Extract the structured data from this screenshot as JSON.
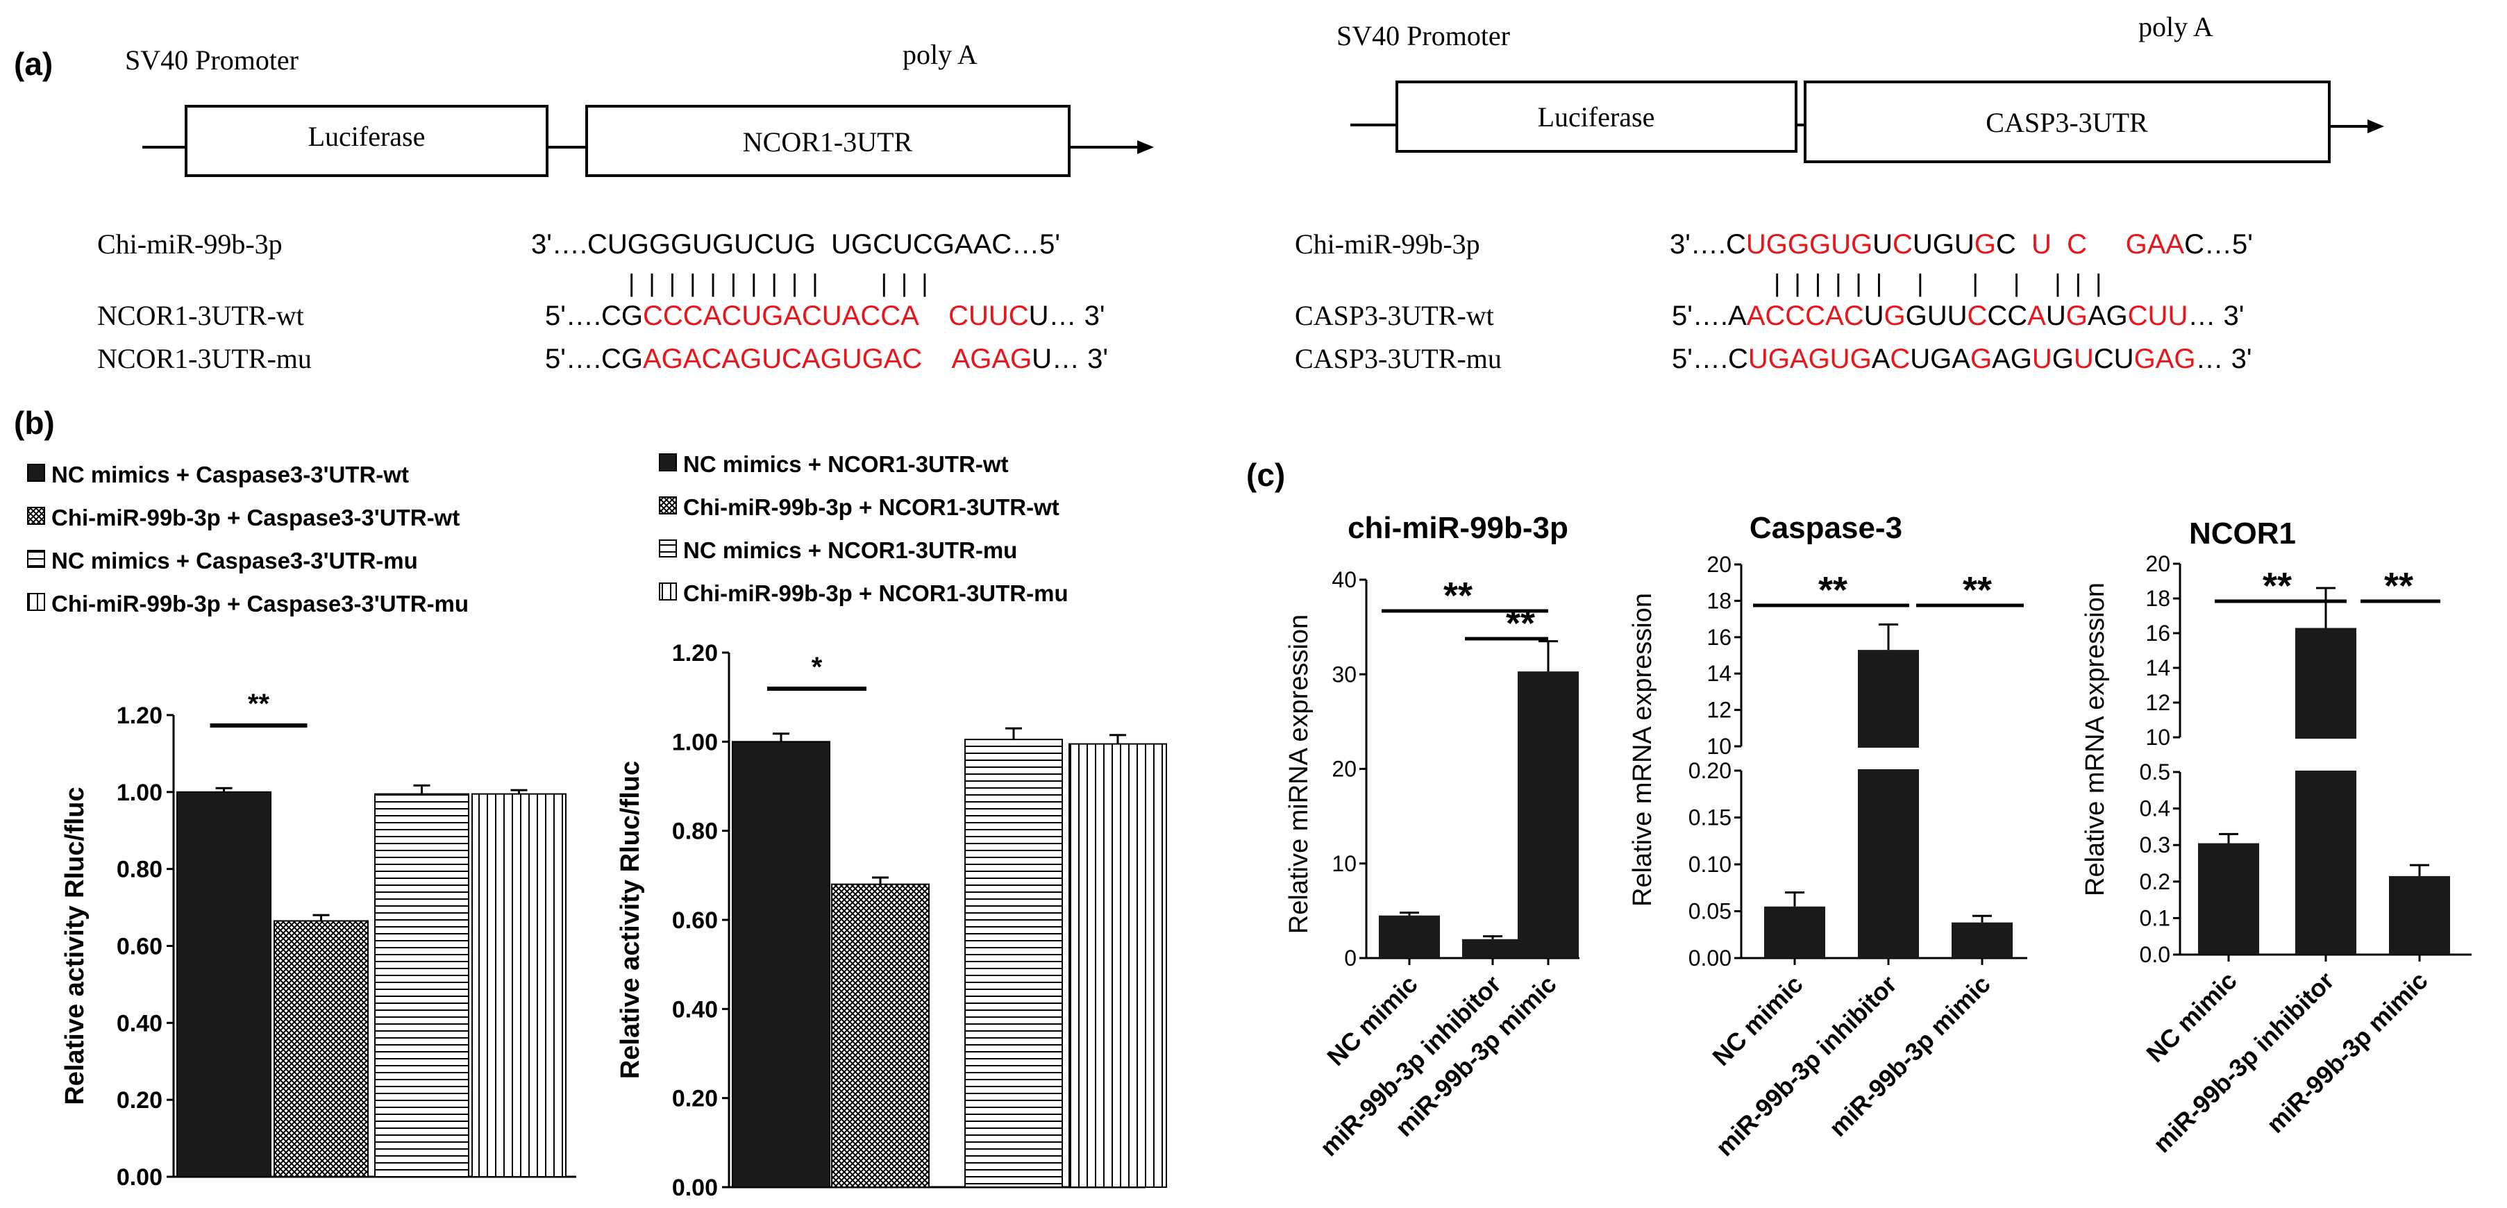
{
  "panel_labels": {
    "a": "(a)",
    "b": "(b)",
    "c": "(c)"
  },
  "colors": {
    "red": "#e8161b",
    "black": "#000000",
    "bar": "#1a1a1a"
  },
  "panel_a": {
    "left": {
      "promoter": "SV40 Promoter",
      "polya": "poly A",
      "box1": "Luciferase",
      "box2": "NCOR1-3UTR",
      "mirna_label": "Chi-miR-99b-3p",
      "wt_label": "NCOR1-3UTR-wt",
      "mu_label": "NCOR1-3UTR-mu",
      "mirna_seq": [
        {
          "t": "3'….CUGGGUGUCUG  UGCUCGAAC…5'",
          "red": false
        }
      ],
      "pairing": "|  |  |  |  |  |  |  |  |  |         |  |  |",
      "wt_seq": [
        {
          "t": "5'….CG",
          "red": false
        },
        {
          "t": "CCCACUGACUACCA",
          "red": true
        },
        {
          "t": "    ",
          "red": false
        },
        {
          "t": "CUUC",
          "red": true
        },
        {
          "t": "U… 3'",
          "red": false
        }
      ],
      "mu_seq": [
        {
          "t": "5'….CG",
          "red": false
        },
        {
          "t": "AGACAGUCAGUGAC",
          "red": true
        },
        {
          "t": "    ",
          "red": false
        },
        {
          "t": "AGAG",
          "red": true
        },
        {
          "t": "U… 3'",
          "red": false
        }
      ]
    },
    "right": {
      "promoter": "SV40 Promoter",
      "polya": "poly A",
      "box1": "Luciferase",
      "box2": "CASP3-3UTR",
      "mirna_label": "Chi-miR-99b-3p",
      "wt_label": "CASP3-3UTR-wt",
      "mu_label": "CASP3-3UTR-mu",
      "mirna_seq": [
        {
          "t": "3'….C",
          "red": false
        },
        {
          "t": "UGGGUG",
          "red": true
        },
        {
          "t": "U",
          "red": false
        },
        {
          "t": "C",
          "red": true
        },
        {
          "t": "UGU",
          "red": false
        },
        {
          "t": "G",
          "red": true
        },
        {
          "t": "C  ",
          "red": false
        },
        {
          "t": "U",
          "red": true
        },
        {
          "t": "  ",
          "red": false
        },
        {
          "t": "C",
          "red": true
        },
        {
          "t": "     ",
          "red": false
        },
        {
          "t": "GAA",
          "red": true
        },
        {
          "t": "C…5'",
          "red": false
        }
      ],
      "pairing": "|  |  |  |  |  |     |       |     |     |  |  |",
      "wt_seq": [
        {
          "t": "5'….A",
          "red": false
        },
        {
          "t": "ACCCAC",
          "red": true
        },
        {
          "t": "U",
          "red": false
        },
        {
          "t": "G",
          "red": true
        },
        {
          "t": "GUU",
          "red": false
        },
        {
          "t": "C",
          "red": true
        },
        {
          "t": "CC",
          "red": false
        },
        {
          "t": "A",
          "red": true
        },
        {
          "t": "U",
          "red": false
        },
        {
          "t": "G",
          "red": true
        },
        {
          "t": "AG",
          "red": false
        },
        {
          "t": "CUU",
          "red": true
        },
        {
          "t": "… 3'",
          "red": false
        }
      ],
      "mu_seq": [
        {
          "t": "5'….C",
          "red": false
        },
        {
          "t": "UGAGUG",
          "red": true
        },
        {
          "t": "A",
          "red": false
        },
        {
          "t": "C",
          "red": true
        },
        {
          "t": "UGA",
          "red": false
        },
        {
          "t": "G",
          "red": true
        },
        {
          "t": "AG",
          "red": false
        },
        {
          "t": "U",
          "red": true
        },
        {
          "t": "G",
          "red": false
        },
        {
          "t": "U",
          "red": true
        },
        {
          "t": "CU",
          "red": false
        },
        {
          "t": "GAG",
          "red": true
        },
        {
          "t": "… 3'",
          "red": false
        }
      ]
    }
  },
  "chart_data": [
    {
      "id": "b-caspase3",
      "type": "bar",
      "ylabel": "Relative activity Rluc/fluc",
      "ylim": [
        0,
        1.2
      ],
      "yticks": [
        "0.00",
        "0.20",
        "0.40",
        "0.60",
        "0.80",
        "1.00",
        "1.20"
      ],
      "legend": [
        {
          "label": "NC mimics + Caspase3-3'UTR-wt",
          "pattern": "solid"
        },
        {
          "label": "Chi-miR-99b-3p + Caspase3-3'UTR-wt",
          "pattern": "check"
        },
        {
          "label": "NC mimics + Caspase3-3'UTR-mu",
          "pattern": "hlines"
        },
        {
          "label": " Chi-miR-99b-3p + Caspase3-3'UTR-mu",
          "pattern": "vlines"
        }
      ],
      "series": [
        {
          "name": "NC mimics + Caspase3-3'UTR-wt",
          "value": 1.0,
          "error": 0.01
        },
        {
          "name": "Chi-miR-99b-3p + Caspase3-3'UTR-wt",
          "value": 0.665,
          "error": 0.015
        },
        {
          "name": "NC mimics + Caspase3-3'UTR-mu",
          "value": 0.995,
          "error": 0.022
        },
        {
          "name": " Chi-miR-99b-3p + Caspase3-3'UTR-mu",
          "value": 0.995,
          "error": 0.01
        }
      ],
      "significance": [
        {
          "label": "**",
          "from": 0,
          "to": 1
        }
      ]
    },
    {
      "id": "b-ncor1",
      "type": "bar",
      "ylabel": "Relative activity Rluc/fluc",
      "ylim": [
        0,
        1.2
      ],
      "yticks": [
        "0.00",
        "0.20",
        "0.40",
        "0.60",
        "0.80",
        "1.00",
        "1.20"
      ],
      "legend": [
        {
          "label": "NC mimics + NCOR1-3UTR-wt",
          "pattern": "solid"
        },
        {
          "label": "Chi-miR-99b-3p + NCOR1-3UTR-wt",
          "pattern": "check"
        },
        {
          "label": "NC mimics + NCOR1-3UTR-mu",
          "pattern": "hlines"
        },
        {
          "label": "Chi-miR-99b-3p + NCOR1-3UTR-mu",
          "pattern": "vlines"
        }
      ],
      "series": [
        {
          "name": "NC mimics + NCOR1-3UTR-wt",
          "value": 1.0,
          "error": 0.018
        },
        {
          "name": "Chi-miR-99b-3p + NCOR1-3UTR-wt",
          "value": 0.68,
          "error": 0.015
        },
        {
          "name": "NC mimics + NCOR1-3UTR-mu",
          "value": 1.005,
          "error": 0.025
        },
        {
          "name": "Chi-miR-99b-3p + NCOR1-3UTR-mu",
          "value": 0.995,
          "error": 0.02
        }
      ],
      "significance": [
        {
          "label": "*",
          "from": 0,
          "to": 1
        }
      ]
    },
    {
      "id": "c-mir99b",
      "type": "bar",
      "title": "chi-miR-99b-3p",
      "ylabel": "Relative miRNA expression",
      "categories": [
        "NC mimic",
        "miR-99b-3p inhibitor",
        "miR-99b-3p mimic"
      ],
      "values": [
        4.5,
        2.0,
        30.3
      ],
      "errors": [
        0.3,
        0.3,
        3.2
      ],
      "ylim": [
        0,
        40
      ],
      "yticks": [
        "0",
        "10",
        "20",
        "30",
        "40"
      ],
      "significance": [
        {
          "label": "**",
          "from": 0,
          "to": 2
        },
        {
          "label": "**",
          "from": 1,
          "to": 2
        }
      ]
    },
    {
      "id": "c-caspase3",
      "type": "bar",
      "title": "Caspase-3",
      "ylabel": "Relative mRNA expression",
      "categories": [
        "NC mimic",
        "miR-99b-3p inhibitor",
        "miR-99b-3p mimic"
      ],
      "values": [
        0.055,
        15.3,
        0.038
      ],
      "errors": [
        0.015,
        1.4,
        0.007
      ],
      "axis_break": {
        "lower": [
          0,
          0.2
        ],
        "upper": [
          10,
          20
        ]
      },
      "yticks_lower": [
        "0.00",
        "0.05",
        "0.10",
        "0.15",
        "0.20"
      ],
      "yticks_upper": [
        "10",
        "12",
        "14",
        "16",
        "18",
        "20"
      ],
      "significance": [
        {
          "label": "**",
          "from": 0,
          "to": 1
        },
        {
          "label": "**",
          "from": 1,
          "to": 2
        }
      ]
    },
    {
      "id": "c-ncor1",
      "type": "bar",
      "title": "NCOR1",
      "ylabel": "Relative mRNA expression",
      "categories": [
        "NC mimic",
        "miR-99b-3p inhibitor",
        "miR-99b-3p mimic"
      ],
      "values": [
        0.305,
        16.3,
        0.215
      ],
      "errors": [
        0.025,
        2.3,
        0.03
      ],
      "axis_break": {
        "lower": [
          0,
          0.5
        ],
        "upper": [
          10,
          20
        ]
      },
      "yticks_lower": [
        "0.0",
        "0.1",
        "0.2",
        "0.3",
        "0.4",
        "0.5"
      ],
      "yticks_upper": [
        "10",
        "12",
        "14",
        "16",
        "18",
        "20"
      ],
      "significance": [
        {
          "label": "**",
          "from": 0,
          "to": 1
        },
        {
          "label": "**",
          "from": 1,
          "to": 2
        }
      ]
    }
  ]
}
